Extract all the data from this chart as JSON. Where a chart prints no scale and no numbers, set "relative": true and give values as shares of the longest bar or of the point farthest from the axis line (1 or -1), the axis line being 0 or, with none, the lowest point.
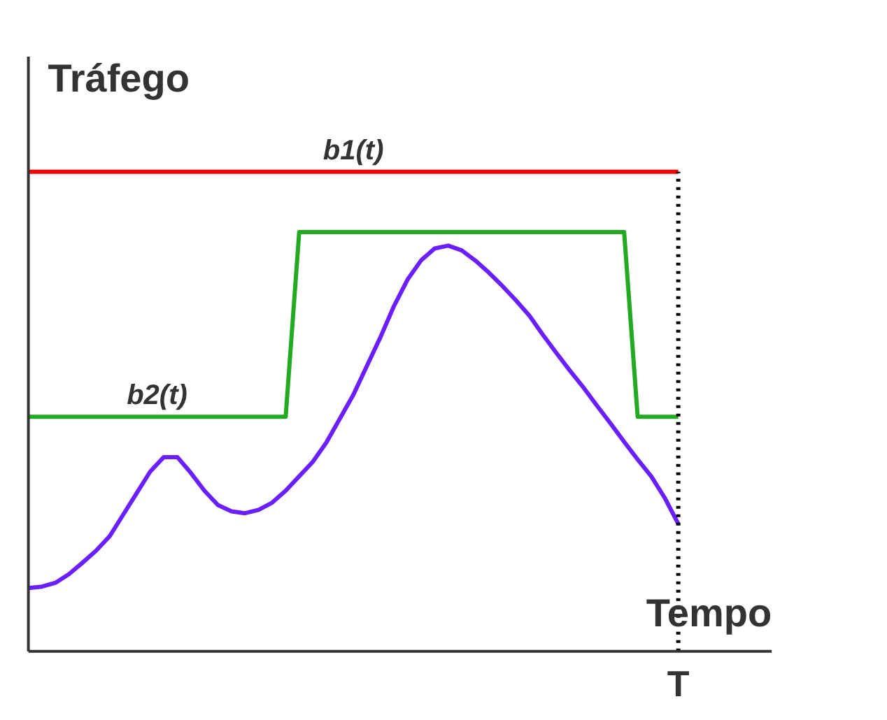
{
  "chart_data": {
    "type": "line",
    "relative": true,
    "xlabel": "Tempo",
    "ylabel": "Tráfego",
    "grid": false,
    "line_style": "solid",
    "categories": [
      null,
      null,
      null,
      null,
      null,
      null,
      null,
      null,
      null,
      null,
      null,
      null,
      null,
      null,
      null,
      null,
      null,
      null,
      null,
      null,
      null,
      null,
      null,
      null,
      null,
      null,
      null,
      null,
      null,
      null,
      null,
      null,
      null,
      null,
      null,
      null,
      null,
      null,
      null,
      null,
      null,
      null,
      null,
      null,
      null,
      null,
      null,
      null,
      null
    ],
    "series": [
      {
        "name": "b1(t)",
        "color": "#ff0000",
        "values": [
          1,
          1,
          1,
          1,
          1,
          1,
          1,
          1,
          1,
          1,
          1,
          1,
          1,
          1,
          1,
          1,
          1,
          1,
          1,
          1,
          1,
          1,
          1,
          1,
          1,
          1,
          1,
          1,
          1,
          1,
          1,
          1,
          1,
          1,
          1,
          1,
          1,
          1,
          1,
          1,
          1,
          1,
          1,
          1,
          1,
          1,
          1,
          1,
          1
        ]
      },
      {
        "name": "b2(t)",
        "color": "#22aa22",
        "values": [
          0.489,
          0.489,
          0.489,
          0.489,
          0.489,
          0.489,
          0.489,
          0.489,
          0.489,
          0.489,
          0.489,
          0.489,
          0.489,
          0.489,
          0.489,
          0.489,
          0.489,
          0.489,
          0.489,
          0.489,
          0.874,
          0.874,
          0.874,
          0.874,
          0.874,
          0.874,
          0.874,
          0.874,
          0.874,
          0.874,
          0.874,
          0.874,
          0.874,
          0.874,
          0.874,
          0.874,
          0.874,
          0.874,
          0.874,
          0.874,
          0.874,
          0.874,
          0.874,
          0.874,
          0.874,
          0.489,
          0.489,
          0.489,
          0.489
        ]
      },
      {
        "color": "#6a1fff",
        "values": [
          0.132,
          0.135,
          0.143,
          0.161,
          0.185,
          0.21,
          0.24,
          0.285,
          0.33,
          0.375,
          0.405,
          0.405,
          0.372,
          0.335,
          0.305,
          0.292,
          0.288,
          0.295,
          0.31,
          0.335,
          0.365,
          0.395,
          0.435,
          0.485,
          0.535,
          0.595,
          0.655,
          0.72,
          0.775,
          0.815,
          0.84,
          0.846,
          0.836,
          0.815,
          0.79,
          0.762,
          0.732,
          0.7,
          0.66,
          0.622,
          0.585,
          0.55,
          0.512,
          0.475,
          0.437,
          0.4,
          0.365,
          0.32,
          0.266
        ]
      }
    ],
    "ref_lines": [
      {
        "axis": "x",
        "label": "T",
        "color": "#000000",
        "line_style": "dotted"
      }
    ]
  }
}
